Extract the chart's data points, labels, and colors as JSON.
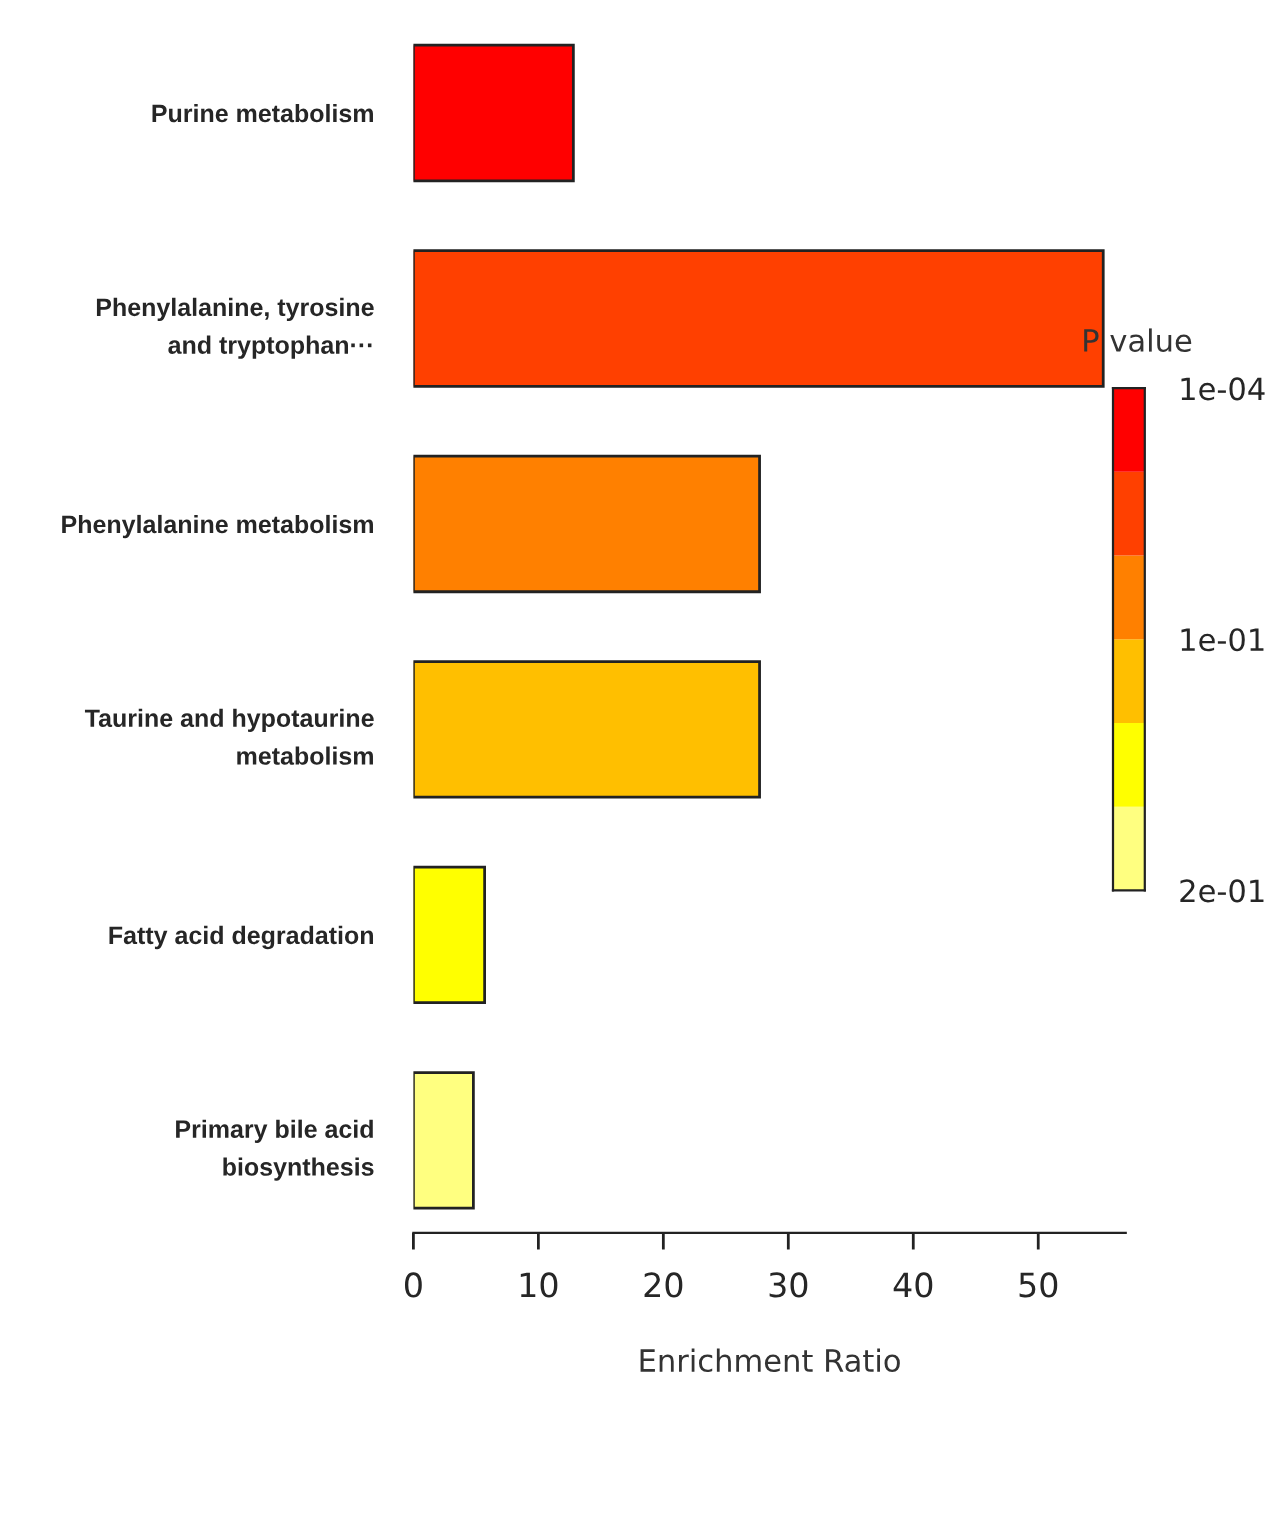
{
  "chart_data": {
    "type": "bar",
    "orientation": "horizontal",
    "xlabel": "Enrichment Ratio",
    "categories": [
      "Purine metabolism",
      "Phenylalanine, tyrosine\nand tryptophan···",
      "Phenylalanine metabolism",
      "Taurine and hypotaurine\nmetabolism",
      "Fatty acid degradation",
      "Primary bile acid\nbiosynthesis"
    ],
    "values": [
      12.8,
      55.2,
      27.7,
      27.7,
      5.7,
      4.8
    ],
    "colors": [
      "#ff0000",
      "#ff4000",
      "#ff8000",
      "#ffbf00",
      "#ffff00",
      "#ffff80"
    ],
    "xlim": [
      0,
      57
    ],
    "xticks": [
      0,
      10,
      20,
      30,
      40,
      50
    ],
    "clabel": "P value",
    "clim": [
      0.2,
      0
    ],
    "cticks": [
      {
        "value": 0.0001,
        "label": "1e-04"
      },
      {
        "value": 0.1,
        "label": "1e-01"
      },
      {
        "value": 0.2,
        "label": "2e-01"
      }
    ],
    "grid": false,
    "legend": false
  }
}
